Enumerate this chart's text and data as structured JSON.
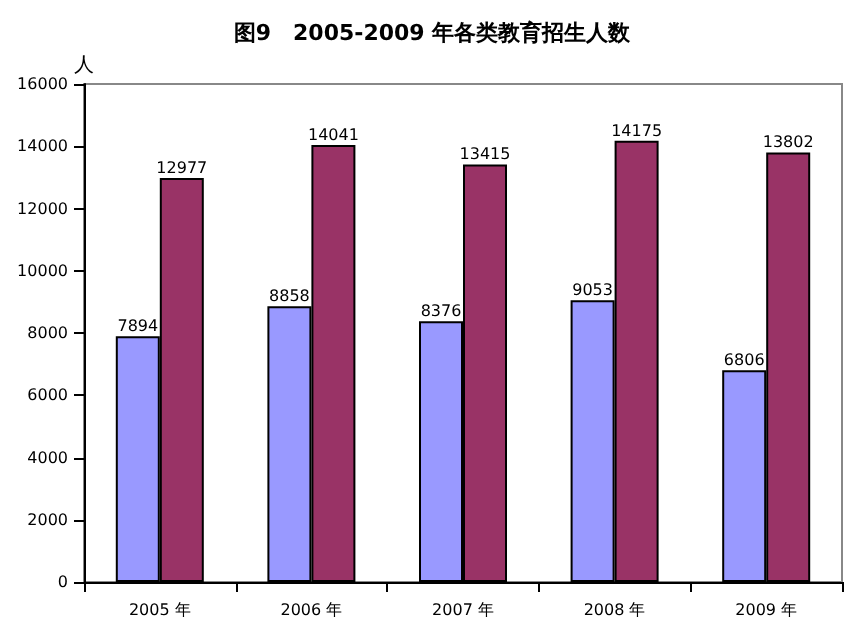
{
  "chart_data": {
    "type": "bar",
    "title": "图9　2005-2009 年各类教育招生人数",
    "ylabel": "人",
    "categories": [
      "2005 年",
      "2006 年",
      "2007 年",
      "2008 年",
      "2009 年"
    ],
    "series": [
      {
        "color": "#9999ff",
        "values": [
          7894,
          8858,
          8376,
          9053,
          6806
        ]
      },
      {
        "color": "#993366",
        "values": [
          12977,
          14041,
          13415,
          14175,
          13802
        ]
      }
    ],
    "ylim": [
      0,
      16000
    ],
    "yticks": [
      0,
      2000,
      4000,
      6000,
      8000,
      10000,
      12000,
      14000,
      16000
    ],
    "grid": false,
    "data_labels": true
  }
}
